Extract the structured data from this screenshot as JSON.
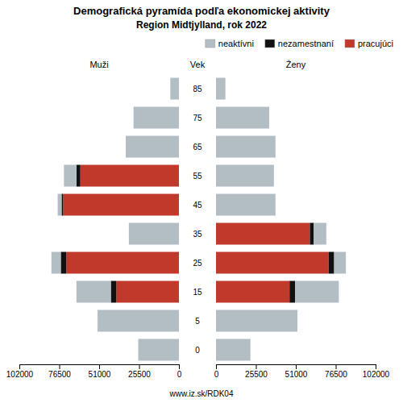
{
  "chart_data": [
    {
      "type": "bar",
      "orientation": "horizontal",
      "stacked": true,
      "title": "Demografická pyramída podľa ekonomickej aktivity",
      "subtitle": "Region Midtjylland, rok 2022",
      "xlabel": "Muži",
      "ylabel": "Vek",
      "annotations": [
        "www.iz.sk/RDK04"
      ],
      "legend": "upper right",
      "categories": [
        "0",
        "5",
        "15",
        "25",
        "35",
        "45",
        "55",
        "65",
        "75",
        "85"
      ],
      "series": [
        {
          "name": "neaktívni",
          "color": "#b2bec3",
          "values": [
            26000,
            52000,
            22000,
            6000,
            32000,
            2500,
            8000,
            34000,
            29000,
            5500
          ]
        },
        {
          "name": "nezamestnaní",
          "color": "#111111",
          "values": [
            0,
            0,
            3500,
            3500,
            0,
            1000,
            2500,
            0,
            0,
            0
          ]
        },
        {
          "name": "pracujúci",
          "color": "#c0392b",
          "values": [
            0,
            0,
            40000,
            72000,
            0,
            74000,
            63000,
            0,
            0,
            0
          ]
        }
      ],
      "xlim": [
        102000,
        0
      ],
      "xticks": [
        0,
        25500,
        51000,
        76500,
        102000
      ]
    },
    {
      "type": "bar",
      "orientation": "horizontal",
      "stacked": true,
      "xlabel": "Ženy",
      "categories": [
        "0",
        "5",
        "15",
        "25",
        "35",
        "45",
        "55",
        "65",
        "75",
        "85"
      ],
      "series": [
        {
          "color": "#b2bec3",
          "values": [
            22000,
            52000,
            28000,
            7500,
            8000,
            38000,
            37000,
            38000,
            34000,
            6000
          ]
        },
        {
          "color": "#111111",
          "values": [
            0,
            0,
            3500,
            3500,
            2500,
            0,
            0,
            0,
            0,
            0
          ]
        },
        {
          "color": "#c0392b",
          "values": [
            0,
            0,
            47000,
            72000,
            60000,
            0,
            0,
            0,
            0,
            0
          ]
        }
      ],
      "xlim": [
        0,
        102000
      ],
      "xticks": [
        0,
        25500,
        51000,
        76500,
        102000
      ]
    }
  ]
}
